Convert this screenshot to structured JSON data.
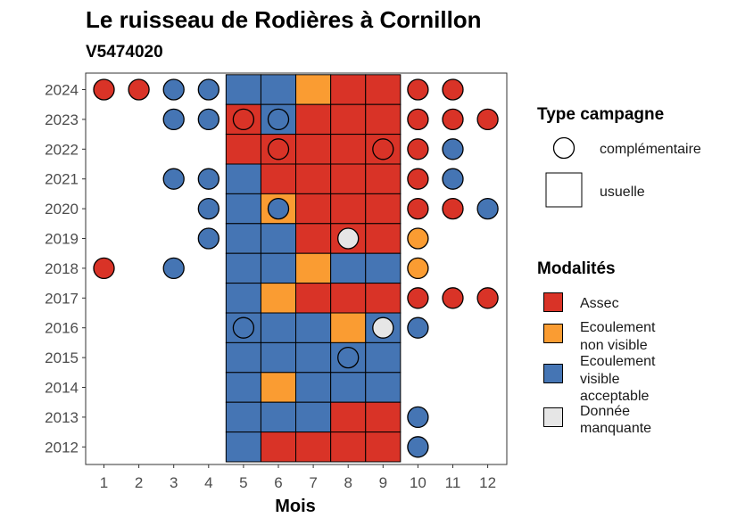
{
  "chart_data": {
    "type": "heatmap",
    "title": "Le ruisseau de Rodières à Cornillon",
    "subtitle": "V5474020",
    "xlabel": "Mois",
    "ylabel": "",
    "x_ticks": [
      "1",
      "2",
      "3",
      "4",
      "5",
      "6",
      "7",
      "8",
      "9",
      "10",
      "11",
      "12"
    ],
    "y_ticks": [
      "2012",
      "2013",
      "2014",
      "2015",
      "2016",
      "2017",
      "2018",
      "2019",
      "2020",
      "2021",
      "2022",
      "2023",
      "2024"
    ],
    "grid": false,
    "colors": {
      "Assec": "#d93327",
      "Ecoulement non visible": "#fa9c32",
      "Ecoulement visible acceptable": "#4575b4",
      "Donnée manquante": "#e6e6e6"
    },
    "legend_campagne": {
      "title": "Type campagne",
      "items": [
        {
          "key": "complementaire",
          "label": "complémentaire"
        },
        {
          "key": "usuelle",
          "label": "usuelle"
        }
      ]
    },
    "legend_modalites": {
      "title": "Modalités",
      "items": [
        {
          "key": "Assec",
          "lines": [
            "Assec"
          ]
        },
        {
          "key": "Ecoulement non visible",
          "lines": [
            "Ecoulement",
            "non visible"
          ]
        },
        {
          "key": "Ecoulement visible acceptable",
          "lines": [
            "Ecoulement",
            "visible",
            "acceptable"
          ]
        },
        {
          "key": "Donnée manquante",
          "lines": [
            "Donnée",
            "manquante"
          ]
        }
      ]
    },
    "usuelle": [
      {
        "year": 2024,
        "months": [
          "Ecoulement visible acceptable",
          "Ecoulement visible acceptable",
          "Ecoulement non visible",
          "Assec",
          "Assec"
        ]
      },
      {
        "year": 2023,
        "months": [
          "Assec",
          "Ecoulement visible acceptable",
          "Assec",
          "Assec",
          "Assec"
        ]
      },
      {
        "year": 2022,
        "months": [
          "Assec",
          "Assec",
          "Assec",
          "Assec",
          "Assec"
        ]
      },
      {
        "year": 2021,
        "months": [
          "Ecoulement visible acceptable",
          "Assec",
          "Assec",
          "Assec",
          "Assec"
        ]
      },
      {
        "year": 2020,
        "months": [
          "Ecoulement visible acceptable",
          "Ecoulement non visible",
          "Assec",
          "Assec",
          "Assec"
        ]
      },
      {
        "year": 2019,
        "months": [
          "Ecoulement visible acceptable",
          "Ecoulement visible acceptable",
          "Assec",
          "Assec",
          "Assec"
        ]
      },
      {
        "year": 2018,
        "months": [
          "Ecoulement visible acceptable",
          "Ecoulement visible acceptable",
          "Ecoulement non visible",
          "Ecoulement visible acceptable",
          "Ecoulement visible acceptable"
        ]
      },
      {
        "year": 2017,
        "months": [
          "Ecoulement visible acceptable",
          "Ecoulement non visible",
          "Assec",
          "Assec",
          "Assec"
        ]
      },
      {
        "year": 2016,
        "months": [
          "Ecoulement visible acceptable",
          "Ecoulement visible acceptable",
          "Ecoulement visible acceptable",
          "Ecoulement non visible",
          "Ecoulement visible acceptable"
        ]
      },
      {
        "year": 2015,
        "months": [
          "Ecoulement visible acceptable",
          "Ecoulement visible acceptable",
          "Ecoulement visible acceptable",
          "Ecoulement visible acceptable",
          "Ecoulement visible acceptable"
        ]
      },
      {
        "year": 2014,
        "months": [
          "Ecoulement visible acceptable",
          "Ecoulement non visible",
          "Ecoulement visible acceptable",
          "Ecoulement visible acceptable",
          "Ecoulement visible acceptable"
        ]
      },
      {
        "year": 2013,
        "months": [
          "Ecoulement visible acceptable",
          "Ecoulement visible acceptable",
          "Ecoulement visible acceptable",
          "Assec",
          "Assec"
        ]
      },
      {
        "year": 2012,
        "months": [
          "Ecoulement visible acceptable",
          "Assec",
          "Assec",
          "Assec",
          "Assec"
        ]
      }
    ],
    "usuelle_first_month": 5,
    "complementaire": [
      {
        "year": 2024,
        "month": 1,
        "value": "Assec"
      },
      {
        "year": 2024,
        "month": 2,
        "value": "Assec"
      },
      {
        "year": 2024,
        "month": 3,
        "value": "Ecoulement visible acceptable"
      },
      {
        "year": 2024,
        "month": 4,
        "value": "Ecoulement visible acceptable"
      },
      {
        "year": 2024,
        "month": 10,
        "value": "Assec"
      },
      {
        "year": 2024,
        "month": 11,
        "value": "Assec"
      },
      {
        "year": 2023,
        "month": 3,
        "value": "Ecoulement visible acceptable"
      },
      {
        "year": 2023,
        "month": 4,
        "value": "Ecoulement visible acceptable"
      },
      {
        "year": 2023,
        "month": 5,
        "value": "Assec"
      },
      {
        "year": 2023,
        "month": 6,
        "value": "Ecoulement visible acceptable"
      },
      {
        "year": 2023,
        "month": 10,
        "value": "Assec"
      },
      {
        "year": 2023,
        "month": 11,
        "value": "Assec"
      },
      {
        "year": 2023,
        "month": 12,
        "value": "Assec"
      },
      {
        "year": 2022,
        "month": 6,
        "value": "Assec"
      },
      {
        "year": 2022,
        "month": 9,
        "value": "Assec"
      },
      {
        "year": 2022,
        "month": 10,
        "value": "Assec"
      },
      {
        "year": 2022,
        "month": 11,
        "value": "Ecoulement visible acceptable"
      },
      {
        "year": 2021,
        "month": 3,
        "value": "Ecoulement visible acceptable"
      },
      {
        "year": 2021,
        "month": 4,
        "value": "Ecoulement visible acceptable"
      },
      {
        "year": 2021,
        "month": 10,
        "value": "Assec"
      },
      {
        "year": 2021,
        "month": 11,
        "value": "Ecoulement visible acceptable"
      },
      {
        "year": 2020,
        "month": 4,
        "value": "Ecoulement visible acceptable"
      },
      {
        "year": 2020,
        "month": 6,
        "value": "Ecoulement visible acceptable"
      },
      {
        "year": 2020,
        "month": 10,
        "value": "Assec"
      },
      {
        "year": 2020,
        "month": 11,
        "value": "Assec"
      },
      {
        "year": 2020,
        "month": 12,
        "value": "Ecoulement visible acceptable"
      },
      {
        "year": 2019,
        "month": 4,
        "value": "Ecoulement visible acceptable"
      },
      {
        "year": 2019,
        "month": 8,
        "value": "Donnée manquante"
      },
      {
        "year": 2019,
        "month": 10,
        "value": "Ecoulement non visible"
      },
      {
        "year": 2018,
        "month": 1,
        "value": "Assec"
      },
      {
        "year": 2018,
        "month": 3,
        "value": "Ecoulement visible acceptable"
      },
      {
        "year": 2018,
        "month": 10,
        "value": "Ecoulement non visible"
      },
      {
        "year": 2017,
        "month": 10,
        "value": "Assec"
      },
      {
        "year": 2017,
        "month": 11,
        "value": "Assec"
      },
      {
        "year": 2017,
        "month": 12,
        "value": "Assec"
      },
      {
        "year": 2016,
        "month": 5,
        "value": "Ecoulement visible acceptable"
      },
      {
        "year": 2016,
        "month": 9,
        "value": "Donnée manquante"
      },
      {
        "year": 2016,
        "month": 10,
        "value": "Ecoulement visible acceptable"
      },
      {
        "year": 2015,
        "month": 8,
        "value": "Ecoulement visible acceptable"
      },
      {
        "year": 2013,
        "month": 10,
        "value": "Ecoulement visible acceptable"
      },
      {
        "year": 2012,
        "month": 10,
        "value": "Ecoulement visible acceptable"
      }
    ]
  }
}
